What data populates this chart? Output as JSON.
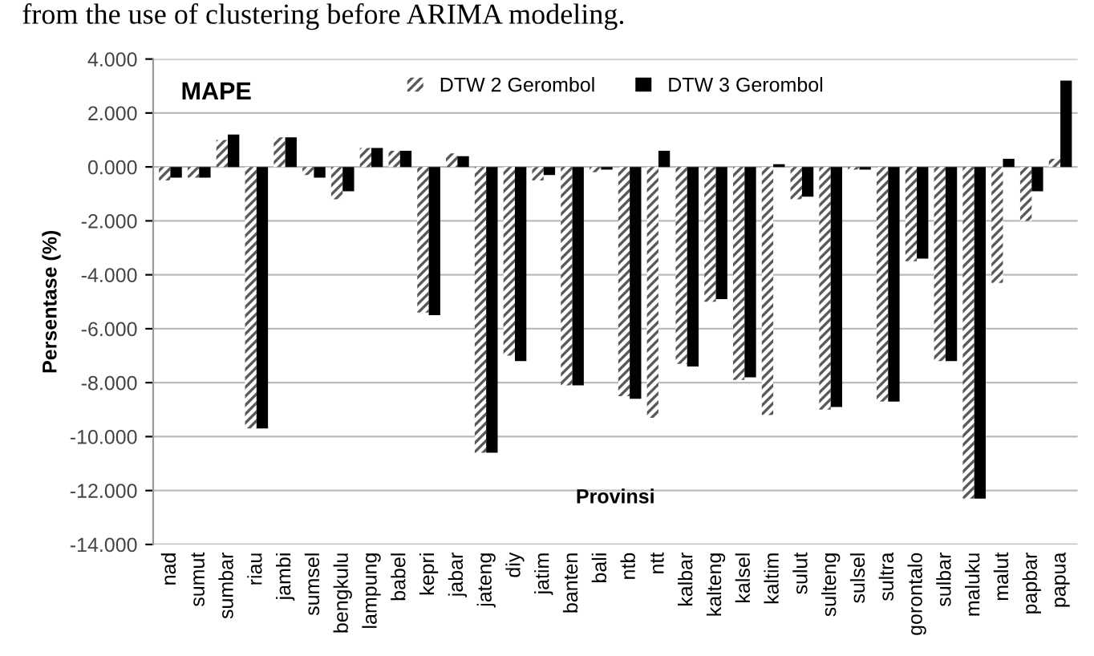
{
  "chart_data": {
    "type": "bar",
    "title": "MAPE",
    "xlabel": "Provinsi",
    "ylabel": "Persentase (%)",
    "annotations": [
      "from the use of clustering before ARIMA modeling."
    ],
    "categories": [
      "nad",
      "sumut",
      "sumbar",
      "riau",
      "jambi",
      "sumsel",
      "bengkulu",
      "lampung",
      "babel",
      "kepri",
      "jabar",
      "jateng",
      "diy",
      "jatim",
      "banten",
      "bali",
      "ntb",
      "ntt",
      "kalbar",
      "kalteng",
      "kalsel",
      "kaltim",
      "sulut",
      "sulteng",
      "sulsel",
      "sultra",
      "gorontalo",
      "sulbar",
      "maluku",
      "malut",
      "papbar",
      "papua"
    ],
    "series": [
      {
        "name": "DTW 2 Gerombol",
        "color": "#595959",
        "values": [
          -0.5,
          -0.4,
          1.0,
          -9.7,
          1.1,
          -0.3,
          -1.2,
          0.7,
          0.6,
          -5.4,
          0.5,
          -10.6,
          -7.0,
          -0.5,
          -8.1,
          -0.2,
          -8.5,
          -9.3,
          -7.3,
          -5.0,
          -7.9,
          -9.2,
          -1.2,
          -9.0,
          -0.1,
          -8.7,
          -3.5,
          -7.2,
          -12.3,
          -4.3,
          -2.0,
          0.3
        ]
      },
      {
        "name": "DTW 3 Gerombol",
        "color": "#000000",
        "values": [
          -0.4,
          -0.4,
          1.2,
          -9.7,
          1.1,
          -0.4,
          -0.9,
          0.7,
          0.6,
          -5.5,
          0.4,
          -10.6,
          -7.2,
          -0.3,
          -8.1,
          -0.1,
          -8.6,
          0.6,
          -7.4,
          -4.9,
          -7.8,
          0.1,
          -1.1,
          -8.9,
          -0.1,
          -8.7,
          -3.4,
          -7.2,
          -12.3,
          0.3,
          -0.9,
          3.2
        ]
      }
    ],
    "ylim": [
      -14,
      4
    ],
    "yticks": [
      {
        "value": -14,
        "label": "-14.000"
      },
      {
        "value": -12,
        "label": "-12.000"
      },
      {
        "value": -10,
        "label": "-10.000"
      },
      {
        "value": -8,
        "label": "-8.000"
      },
      {
        "value": -6,
        "label": "-6.000"
      },
      {
        "value": -4,
        "label": "-4.000"
      },
      {
        "value": -2,
        "label": "-2.000"
      },
      {
        "value": 0,
        "label": "0.000"
      },
      {
        "value": 2,
        "label": "2.000"
      },
      {
        "value": 4,
        "label": "4.000"
      }
    ],
    "grid": "y",
    "legend": "top"
  }
}
